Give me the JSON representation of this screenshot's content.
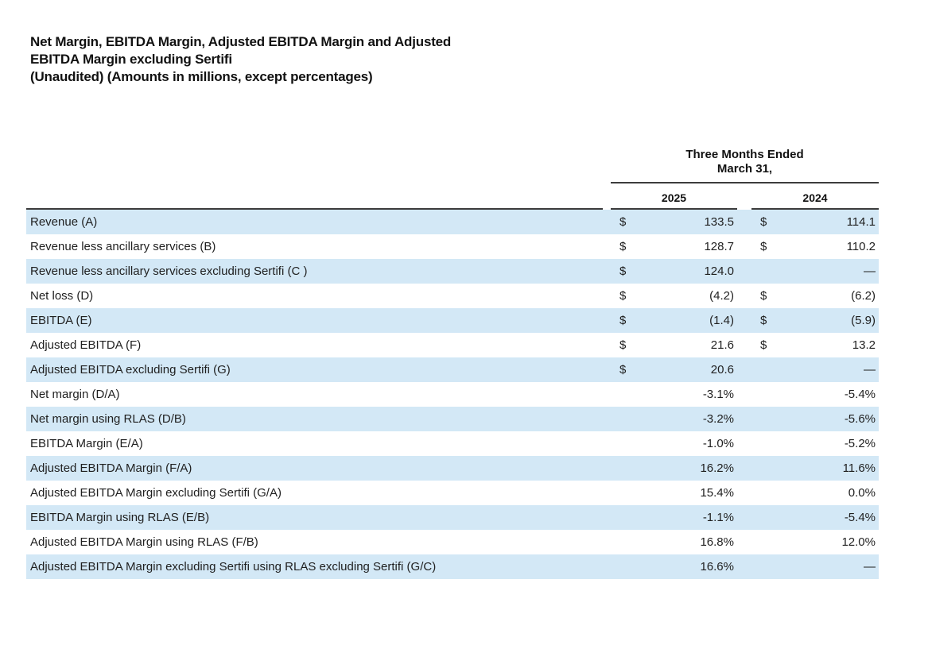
{
  "title": {
    "line1": "Net Margin, EBITDA Margin, Adjusted EBITDA Margin and Adjusted",
    "line2": "EBITDA Margin excluding Sertifi",
    "line3": "(Unaudited) (Amounts in millions, except percentages)"
  },
  "table": {
    "period_header_line1": "Three Months Ended",
    "period_header_line2": "March 31,",
    "columns": {
      "col_2025": "2025",
      "col_2024": "2024"
    },
    "currency_symbol": "$",
    "empty_value_dash": "—",
    "colors": {
      "row_highlight": "#d3e8f6",
      "rule": "#3c3c3c"
    },
    "rows": [
      {
        "label": "Revenue (A)",
        "cur25": "$",
        "v25": "133.5",
        "cur24": "$",
        "v24": "114.1",
        "shaded": true
      },
      {
        "label": "Revenue less ancillary services (B)",
        "cur25": "$",
        "v25": "128.7",
        "cur24": "$",
        "v24": "110.2",
        "shaded": false
      },
      {
        "label": "Revenue less ancillary services excluding Sertifi (C )",
        "cur25": "$",
        "v25": "124.0",
        "cur24": "",
        "v24": "—",
        "shaded": true
      },
      {
        "label": "Net loss (D)",
        "cur25": "$",
        "v25": "(4.2)",
        "cur24": "$",
        "v24": "(6.2)",
        "shaded": false
      },
      {
        "label": "EBITDA (E)",
        "cur25": "$",
        "v25": "(1.4)",
        "cur24": "$",
        "v24": "(5.9)",
        "shaded": true
      },
      {
        "label": "Adjusted EBITDA (F)",
        "cur25": "$",
        "v25": "21.6",
        "cur24": "$",
        "v24": "13.2",
        "shaded": false
      },
      {
        "label": "Adjusted EBITDA excluding Sertifi (G)",
        "cur25": "$",
        "v25": "20.6",
        "cur24": "",
        "v24": "—",
        "shaded": true
      },
      {
        "label": "Net margin (D/A)",
        "cur25": "",
        "v25": "-3.1%",
        "cur24": "",
        "v24": "-5.4%",
        "shaded": false
      },
      {
        "label": "Net margin using RLAS (D/B)",
        "cur25": "",
        "v25": "-3.2%",
        "cur24": "",
        "v24": "-5.6%",
        "shaded": true
      },
      {
        "label": "EBITDA Margin (E/A)",
        "cur25": "",
        "v25": "-1.0%",
        "cur24": "",
        "v24": "-5.2%",
        "shaded": false
      },
      {
        "label": "Adjusted EBITDA Margin (F/A)",
        "cur25": "",
        "v25": "16.2%",
        "cur24": "",
        "v24": "11.6%",
        "shaded": true
      },
      {
        "label": "Adjusted EBITDA Margin excluding Sertifi (G/A)",
        "cur25": "",
        "v25": "15.4%",
        "cur24": "",
        "v24": "0.0%",
        "shaded": false
      },
      {
        "label": "EBITDA Margin using RLAS (E/B)",
        "cur25": "",
        "v25": "-1.1%",
        "cur24": "",
        "v24": "-5.4%",
        "shaded": true
      },
      {
        "label": "Adjusted EBITDA Margin using RLAS (F/B)",
        "cur25": "",
        "v25": "16.8%",
        "cur24": "",
        "v24": "12.0%",
        "shaded": false
      },
      {
        "label": "Adjusted EBITDA Margin excluding Sertifi using RLAS excluding Sertifi (G/C)",
        "cur25": "",
        "v25": "16.6%",
        "cur24": "",
        "v24": "—",
        "shaded": true
      }
    ]
  }
}
